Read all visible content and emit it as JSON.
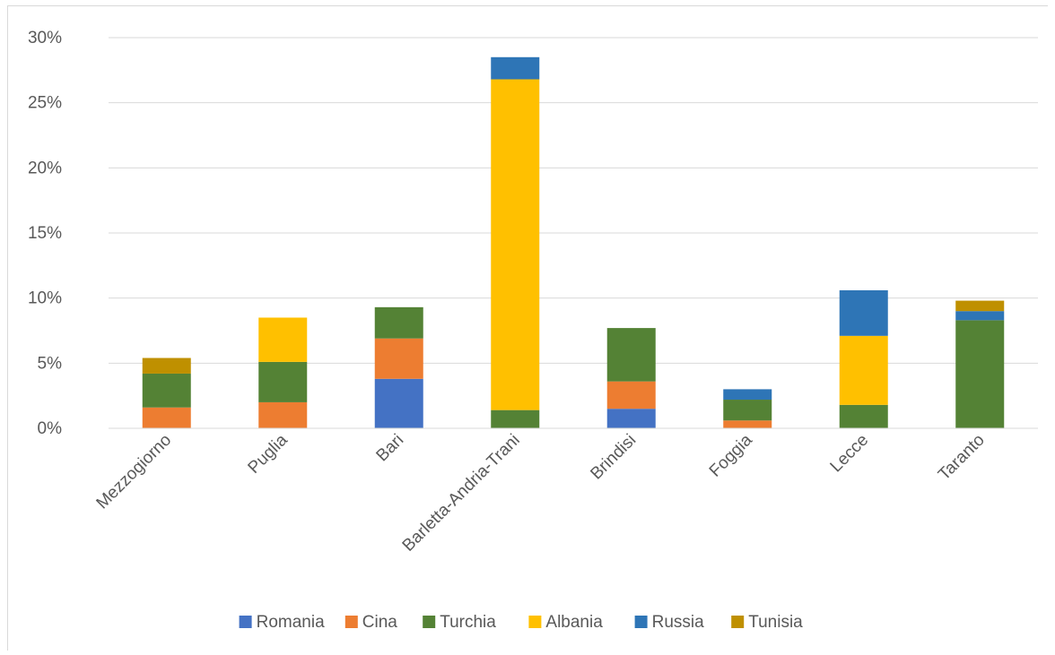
{
  "chart_data": {
    "type": "bar",
    "stacked": true,
    "title": "",
    "xlabel": "",
    "ylabel": "",
    "categories": [
      "Mezzogiorno",
      "Puglia",
      "Bari",
      "Barletta-Andria-Trani",
      "Brindisi",
      "Foggia",
      "Lecce",
      "Taranto"
    ],
    "ylim": [
      0,
      30
    ],
    "yticks": [
      0,
      5,
      10,
      15,
      20,
      25,
      30
    ],
    "ytick_labels": [
      "0%",
      "5%",
      "10%",
      "15%",
      "20%",
      "25%",
      "30%"
    ],
    "grid": true,
    "legend_position": "bottom",
    "series": [
      {
        "name": "Romania",
        "color": "#4472C4",
        "values": [
          0,
          0,
          3.8,
          0,
          1.5,
          0,
          0,
          0
        ]
      },
      {
        "name": "Cina",
        "color": "#ED7D31",
        "values": [
          1.6,
          2.0,
          3.1,
          0,
          2.1,
          0.6,
          0,
          0
        ]
      },
      {
        "name": "Turchia",
        "color": "#548235",
        "values": [
          2.6,
          3.1,
          2.4,
          1.4,
          4.1,
          1.6,
          1.8,
          8.3
        ]
      },
      {
        "name": "Albania",
        "color": "#FFC000",
        "values": [
          0,
          3.4,
          0,
          25.4,
          0,
          0,
          5.3,
          0
        ]
      },
      {
        "name": "Russia",
        "color": "#2E75B6",
        "values": [
          0,
          0,
          0,
          1.7,
          0,
          0.8,
          3.5,
          0.7
        ]
      },
      {
        "name": "Tunisia",
        "color": "#BF9000",
        "values": [
          1.2,
          0,
          0,
          0,
          0,
          0,
          0,
          0.8
        ]
      }
    ]
  }
}
